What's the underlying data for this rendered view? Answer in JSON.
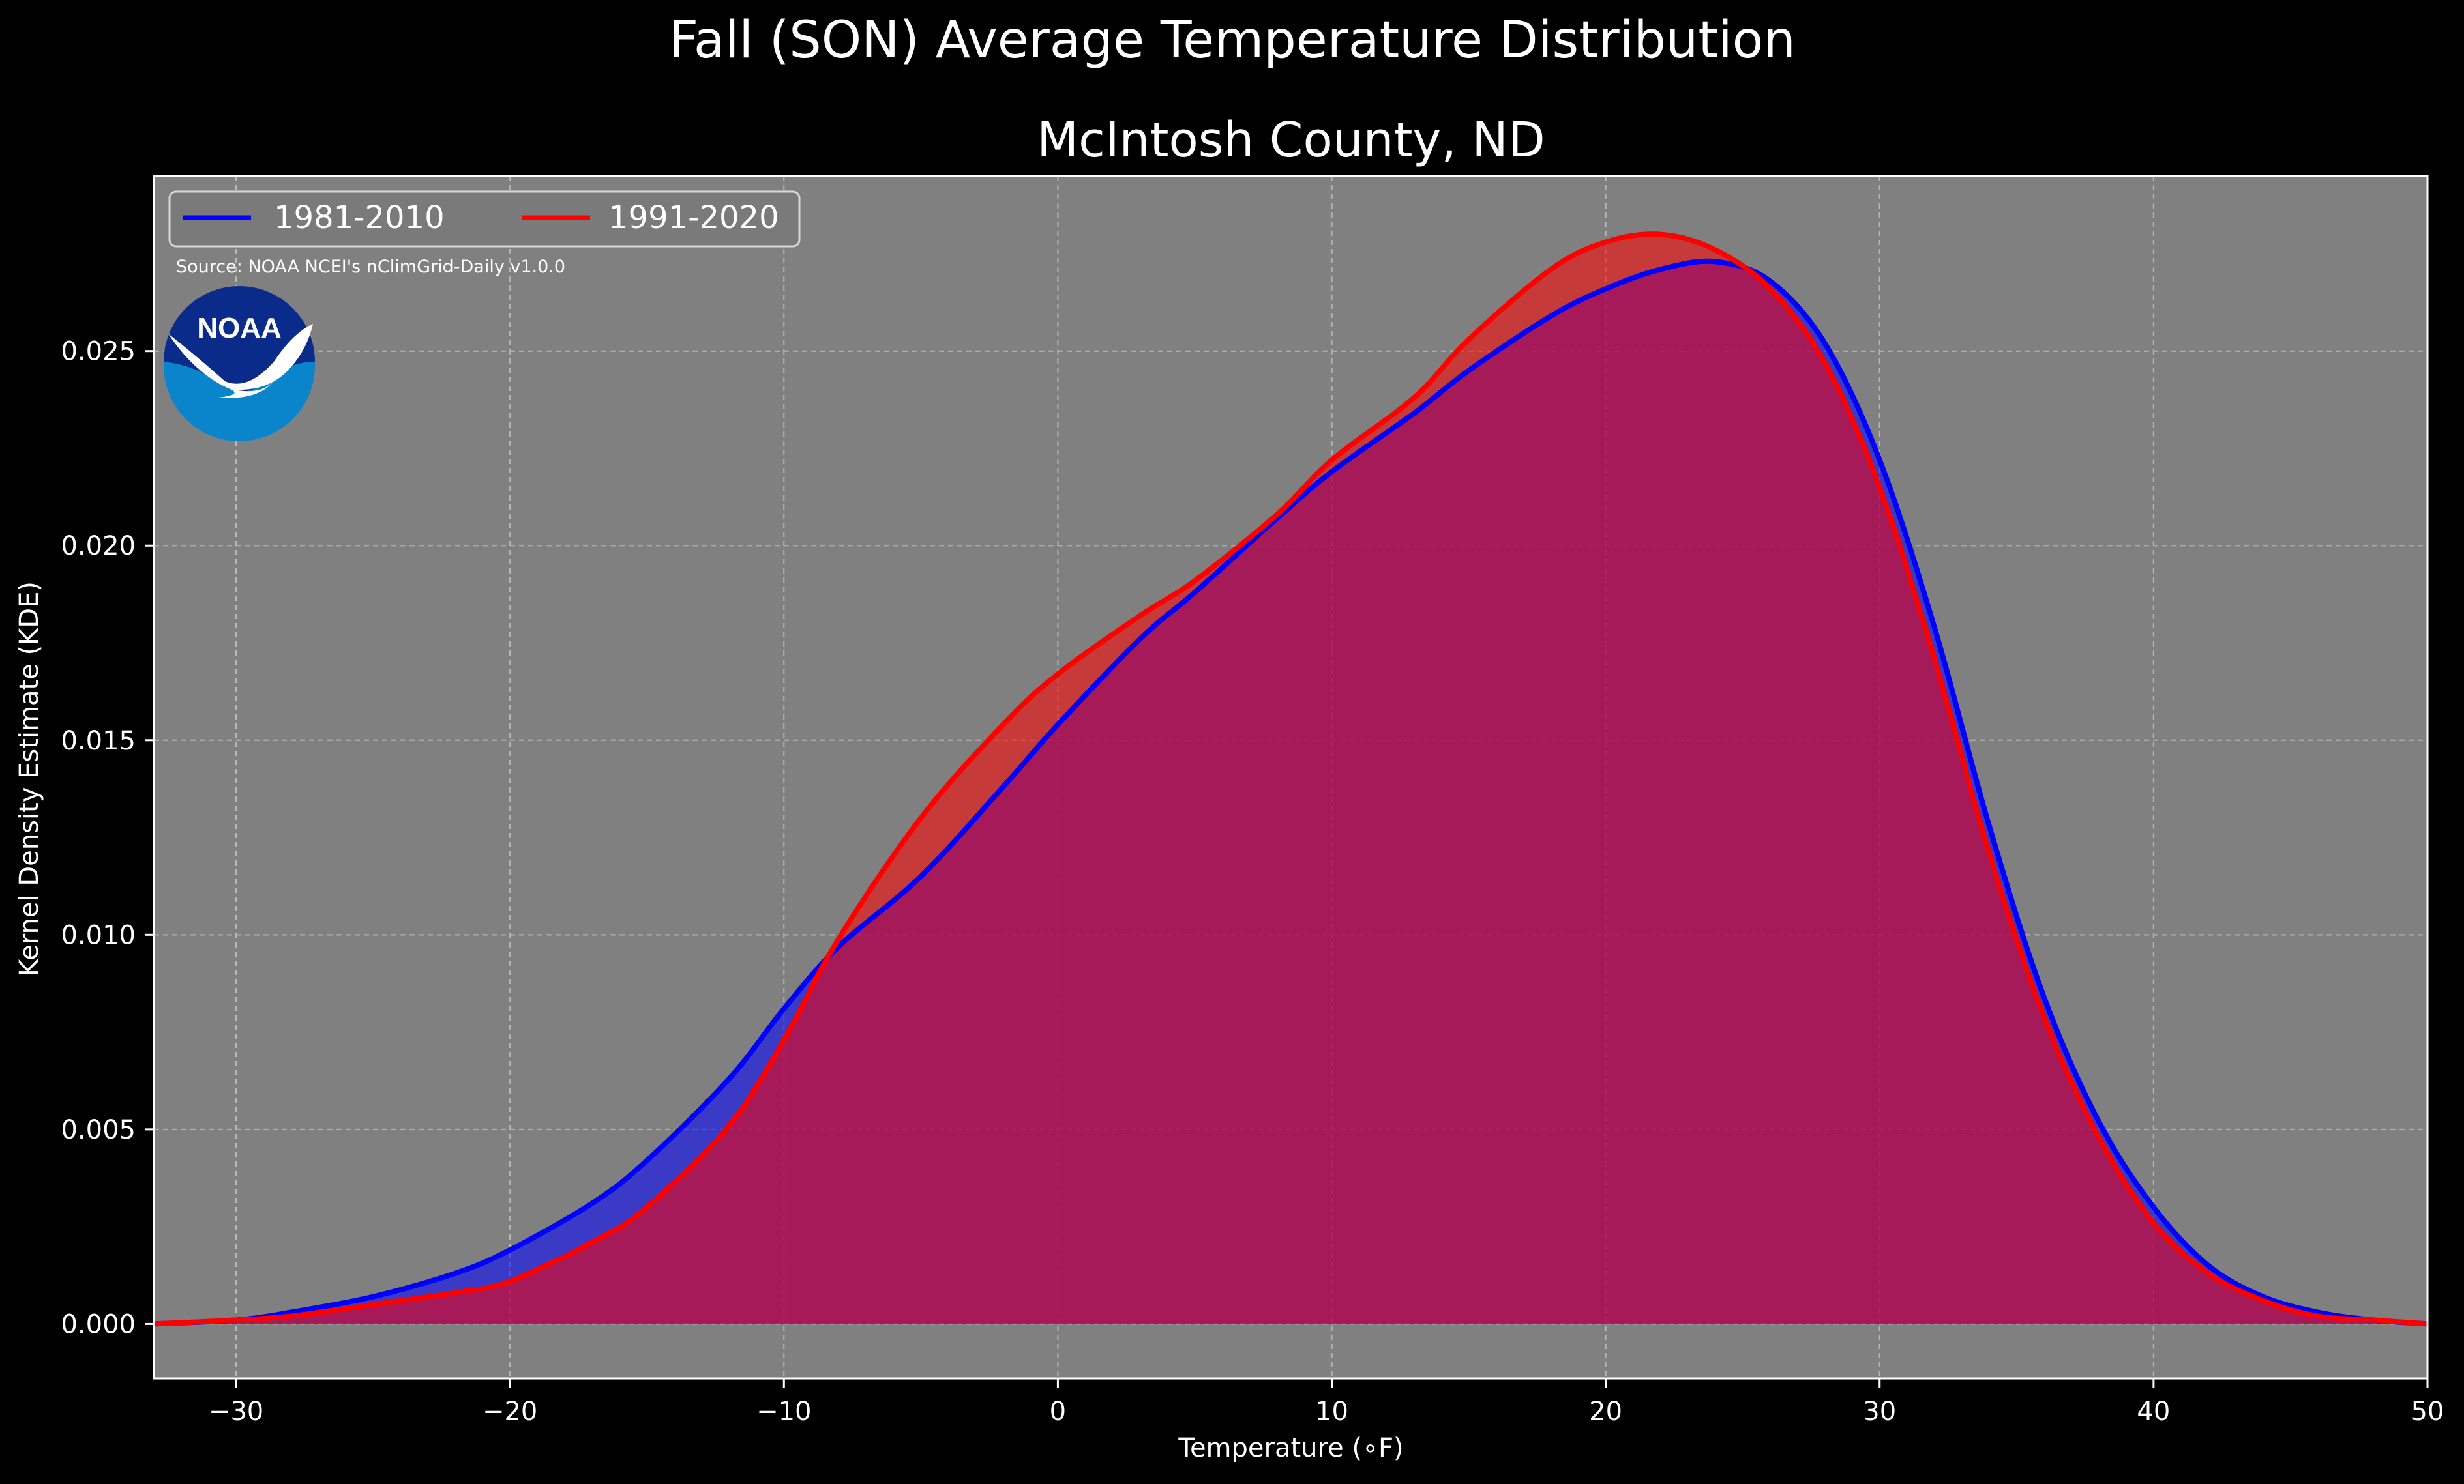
{
  "chart_data": {
    "type": "area",
    "title": "Fall (SON) Average Temperature Distribution",
    "subtitle": "McIntosh County, ND",
    "xlabel": "Temperature (∘F)",
    "ylabel": "Kernel Density Estimate (KDE)",
    "xlim": [
      -33,
      50
    ],
    "ylim": [
      -0.0014,
      0.0295
    ],
    "xticks": [
      -30,
      -20,
      -10,
      0,
      10,
      20,
      30,
      40,
      50
    ],
    "xtick_labels": [
      "−30",
      "−20",
      "−10",
      "0",
      "10",
      "20",
      "30",
      "40",
      "50"
    ],
    "yticks": [
      0.0,
      0.005,
      0.01,
      0.015,
      0.02,
      0.025
    ],
    "ytick_labels": [
      "0.000",
      "0.005",
      "0.010",
      "0.015",
      "0.020",
      "0.025"
    ],
    "grid": true,
    "legend_position": "top-left",
    "source_note": "Source: NOAA NCEI's nClimGrid-Daily v1.0.0",
    "logo_text": "NOAA",
    "colors": {
      "figure_background": "#000000",
      "plot_background": "#808080",
      "series_1": "#0000ff",
      "series_2": "#ff0000",
      "overlap_fill": "#9e1f5e"
    },
    "series": [
      {
        "name": "1981-2010",
        "color": "#0000ff",
        "x": [
          -33,
          -30,
          -28,
          -25,
          -22,
          -20,
          -17,
          -15,
          -12,
          -10,
          -8,
          -5,
          -2,
          0,
          3,
          5,
          8,
          10,
          13,
          15,
          18,
          20,
          22,
          24,
          26,
          28,
          30,
          32,
          34,
          36,
          38,
          40,
          42,
          44,
          46,
          48,
          50
        ],
        "y": [
          0.0,
          0.0001,
          0.0003,
          0.0007,
          0.0013,
          0.0019,
          0.0031,
          0.0042,
          0.0063,
          0.0081,
          0.0097,
          0.0115,
          0.0138,
          0.0154,
          0.0176,
          0.0188,
          0.0207,
          0.0219,
          0.0234,
          0.0245,
          0.0259,
          0.0266,
          0.0271,
          0.0273,
          0.0268,
          0.0252,
          0.0222,
          0.0179,
          0.0128,
          0.0084,
          0.0052,
          0.003,
          0.0015,
          0.0007,
          0.0003,
          0.0001,
          0.0
        ]
      },
      {
        "name": "1991-2020",
        "color": "#ff0000",
        "x": [
          -33,
          -30,
          -28,
          -25,
          -22,
          -20,
          -17,
          -15,
          -12,
          -10,
          -8,
          -5,
          -2,
          0,
          3,
          5,
          8,
          10,
          13,
          15,
          18,
          20,
          22,
          24,
          26,
          28,
          30,
          32,
          34,
          36,
          38,
          40,
          42,
          44,
          46,
          48,
          50
        ],
        "y": [
          0.0,
          0.0001,
          0.0002,
          0.0005,
          0.0008,
          0.0011,
          0.0021,
          0.003,
          0.0051,
          0.0073,
          0.0099,
          0.013,
          0.0154,
          0.0167,
          0.0182,
          0.0191,
          0.0208,
          0.0222,
          0.0238,
          0.0253,
          0.0271,
          0.0278,
          0.028,
          0.0276,
          0.0266,
          0.0247,
          0.0215,
          0.0171,
          0.0121,
          0.0079,
          0.0048,
          0.0026,
          0.0013,
          0.0006,
          0.0002,
          0.0001,
          0.0
        ]
      }
    ]
  }
}
